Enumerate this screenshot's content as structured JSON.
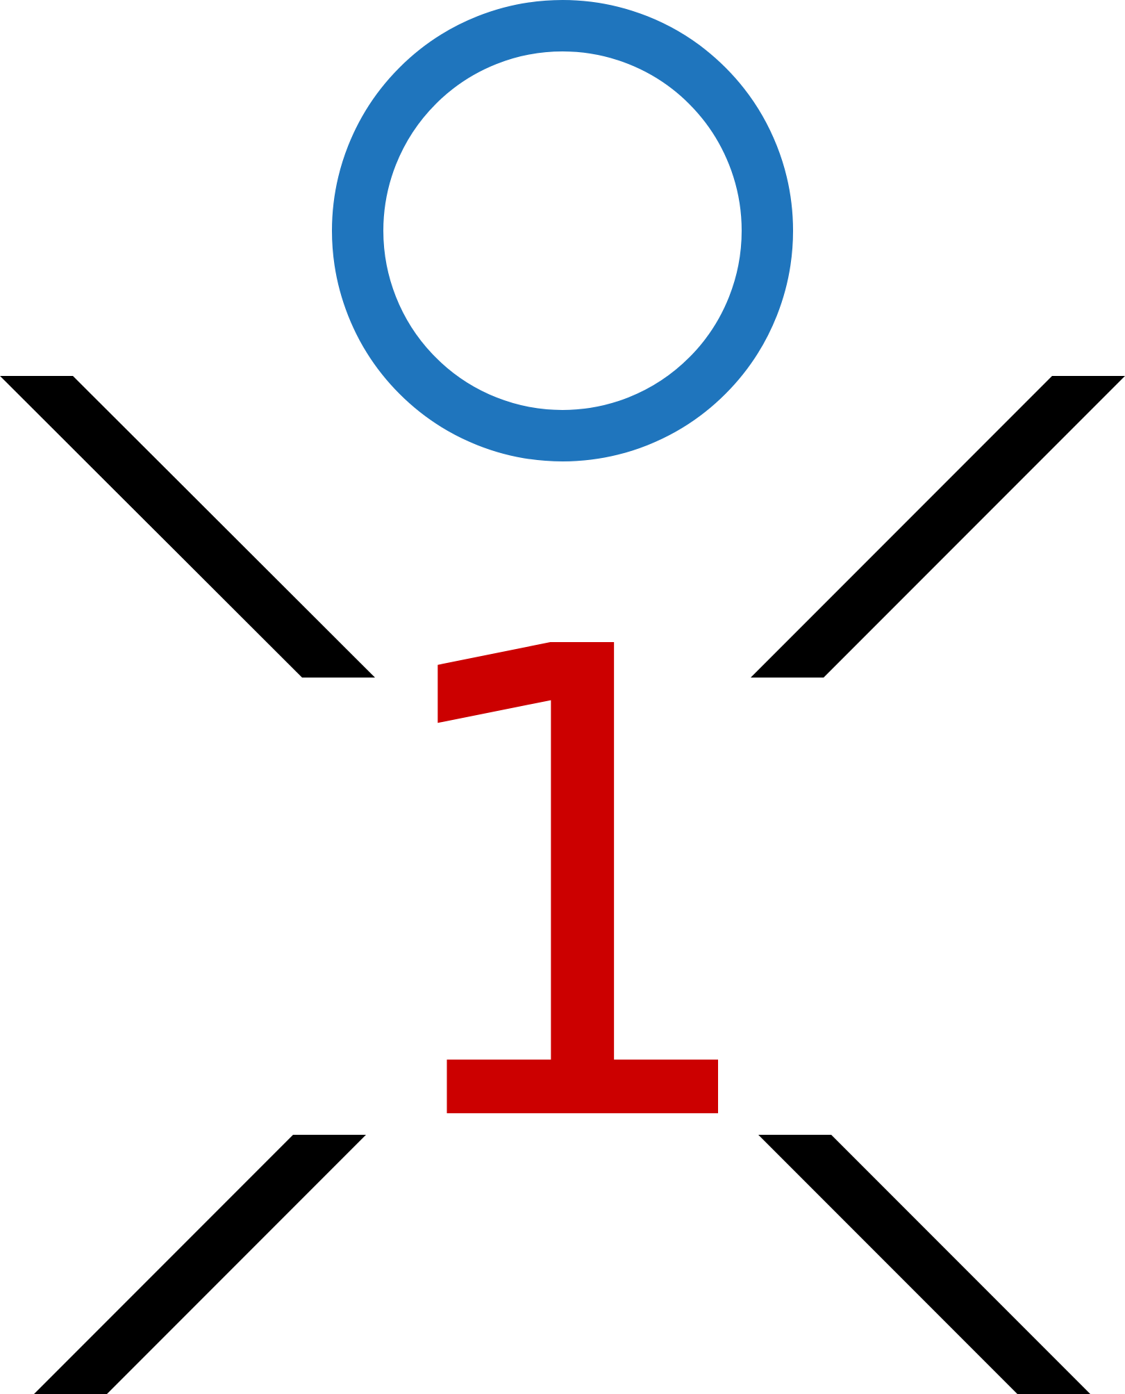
{
  "figure": {
    "numeral": "1",
    "colors": {
      "circle": "#1F75BD",
      "numeral": "#CC0000",
      "strokes": "#000000",
      "background": "#FFFFFF"
    },
    "shapes": [
      "circle-outline",
      "diagonal-bar-top-left",
      "diagonal-bar-top-right",
      "diagonal-bar-bottom-left",
      "diagonal-bar-bottom-right"
    ]
  }
}
